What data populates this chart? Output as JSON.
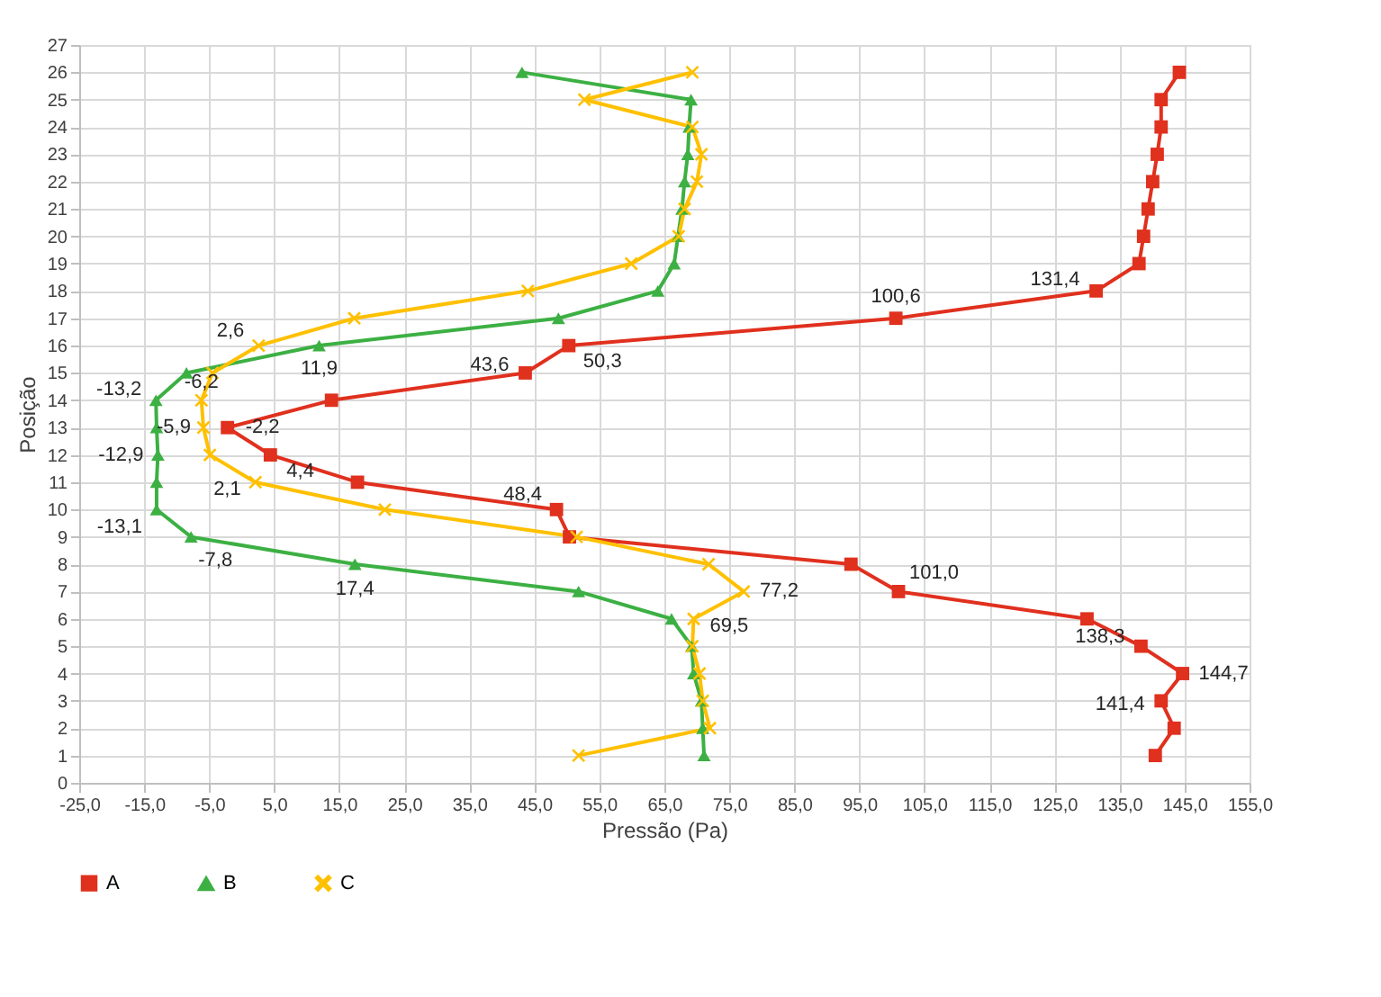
{
  "chart_data": {
    "type": "line",
    "orientation": "horizontal",
    "xlabel": "Pressão (Pa)",
    "ylabel": "Posição",
    "x": [
      1,
      2,
      3,
      4,
      5,
      6,
      7,
      8,
      9,
      10,
      11,
      12,
      13,
      14,
      15,
      16,
      17,
      18,
      19,
      20,
      21,
      22,
      23,
      24,
      25,
      26
    ],
    "series": [
      {
        "name": "A",
        "color": "#e0301e",
        "marker": "square",
        "values": [
          140.5,
          143.4,
          141.4,
          144.7,
          138.3,
          130.0,
          101.0,
          93.7,
          50.4,
          48.4,
          17.8,
          4.4,
          -2.2,
          13.8,
          43.6,
          50.3,
          100.6,
          131.4,
          138.0,
          138.7,
          139.4,
          140.1,
          140.8,
          141.4,
          141.4,
          144.2
        ],
        "value_labels": [
          null,
          null,
          "141,4",
          "144,7",
          "138,3",
          null,
          "101,0",
          null,
          null,
          "48,4",
          null,
          "4,4",
          "-2,2",
          null,
          "43,6",
          "50,3",
          "100,6",
          "131,4",
          null,
          null,
          null,
          null,
          null,
          null,
          null,
          null
        ]
      },
      {
        "name": "B",
        "color": "#3cb043",
        "marker": "triangle",
        "values": [
          71.1,
          70.9,
          70.7,
          69.5,
          69.2,
          66.1,
          51.8,
          17.4,
          -7.8,
          -13.1,
          -13.1,
          -12.9,
          -13.1,
          -13.2,
          -8.5,
          11.9,
          48.7,
          64.0,
          66.5,
          67.1,
          67.7,
          68.1,
          68.6,
          68.8,
          69.1,
          43.1
        ],
        "value_labels": [
          null,
          null,
          null,
          null,
          null,
          null,
          null,
          "17,4",
          "-7,8",
          "-13,1",
          null,
          "-12,9",
          null,
          "-13,2",
          null,
          "11,9",
          null,
          null,
          null,
          null,
          null,
          null,
          null,
          null,
          null,
          null
        ]
      },
      {
        "name": "C",
        "color": "#ffc000",
        "marker": "cross",
        "values": [
          51.8,
          72.0,
          70.9,
          70.4,
          69.3,
          69.5,
          77.2,
          71.8,
          51.5,
          22.0,
          2.1,
          -4.9,
          -5.9,
          -6.2,
          -4.5,
          2.6,
          17.3,
          44.0,
          59.9,
          67.2,
          68.1,
          70.0,
          70.7,
          69.3,
          52.7,
          69.3
        ],
        "value_labels": [
          null,
          null,
          null,
          null,
          null,
          "69,5",
          "77,2",
          null,
          null,
          null,
          "2,1",
          null,
          "-5,9",
          "-6,2",
          null,
          "2,6",
          null,
          null,
          null,
          null,
          null,
          null,
          null,
          null,
          null,
          null
        ]
      }
    ],
    "xlim": [
      -25,
      155
    ],
    "xticks": [
      {
        "value": -25,
        "label": "-25,0"
      },
      {
        "value": -15,
        "label": "-15,0"
      },
      {
        "value": -5,
        "label": "-5,0"
      },
      {
        "value": 5,
        "label": "5,0"
      },
      {
        "value": 15,
        "label": "15,0"
      },
      {
        "value": 25,
        "label": "25,0"
      },
      {
        "value": 35,
        "label": "35,0"
      },
      {
        "value": 45,
        "label": "45,0"
      },
      {
        "value": 55,
        "label": "55,0"
      },
      {
        "value": 65,
        "label": "65,0"
      },
      {
        "value": 75,
        "label": "75,0"
      },
      {
        "value": 85,
        "label": "85,0"
      },
      {
        "value": 95,
        "label": "95,0"
      },
      {
        "value": 105,
        "label": "105,0"
      },
      {
        "value": 115,
        "label": "115,0"
      },
      {
        "value": 125,
        "label": "125,0"
      },
      {
        "value": 135,
        "label": "135,0"
      },
      {
        "value": 145,
        "label": "145,0"
      },
      {
        "value": 155,
        "label": "155,0"
      }
    ],
    "ylim": [
      0,
      27
    ],
    "yticks": [
      0,
      1,
      2,
      3,
      4,
      5,
      6,
      7,
      8,
      9,
      10,
      11,
      12,
      13,
      14,
      15,
      16,
      17,
      18,
      19,
      20,
      21,
      22,
      23,
      24,
      25,
      26,
      27
    ],
    "grid": true,
    "legend": "bottom"
  }
}
